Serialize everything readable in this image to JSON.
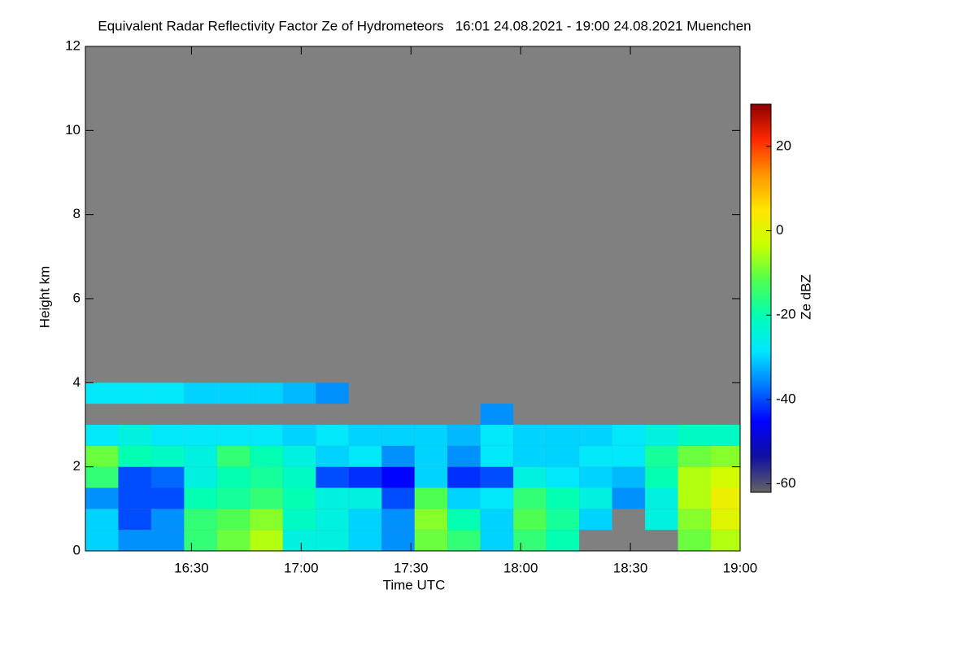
{
  "chart_data": {
    "type": "heatmap",
    "title": "Equivalent Radar Reflectivity Factor Ze of Hydrometeors   16:01 24.08.2021 - 19:00 24.08.2021 Muenchen",
    "xlabel": "Time UTC",
    "ylabel": "Height km",
    "colorbar_label": "Ze dBZ",
    "xlim": [
      "16:01",
      "19:00"
    ],
    "xticks": [
      "16:30",
      "17:00",
      "17:30",
      "18:00",
      "18:30",
      "19:00"
    ],
    "ylim": [
      0,
      12
    ],
    "yticks": [
      0,
      2,
      4,
      6,
      8,
      10,
      12
    ],
    "zlim": [
      -62,
      30
    ],
    "zticks": [
      -60,
      -40,
      -20,
      0,
      20
    ],
    "background": "#808080",
    "colormap": [
      "#646464",
      "#1010a0",
      "#0000ff",
      "#0078ff",
      "#00e6ff",
      "#00ffb4",
      "#50ff50",
      "#c8ff00",
      "#ffe600",
      "#ff9600",
      "#ff2800",
      "#8c0000"
    ],
    "xbins": [
      "16:01",
      "16:10",
      "16:19",
      "16:28",
      "16:37",
      "16:46",
      "16:55",
      "17:04",
      "17:13",
      "17:22",
      "17:31",
      "17:40",
      "17:49",
      "17:58",
      "18:07",
      "18:16",
      "18:25",
      "18:34",
      "18:43",
      "18:52",
      "19:00"
    ],
    "ybins": [
      0,
      0.5,
      1,
      1.5,
      2,
      2.5,
      3,
      3.5,
      4
    ],
    "values": [
      [
        -30,
        -35,
        -35,
        -15,
        -10,
        -5,
        -25,
        -25,
        -30,
        -35,
        -10,
        -15,
        -30,
        -15,
        -20,
        null,
        null,
        null,
        -10,
        -5
      ],
      [
        -30,
        -40,
        -35,
        -15,
        -12,
        -8,
        -22,
        -25,
        -30,
        -35,
        -8,
        -20,
        -30,
        -12,
        -18,
        -30,
        null,
        -25,
        -8,
        0
      ],
      [
        -35,
        -40,
        -40,
        -20,
        -18,
        -15,
        -20,
        -25,
        -25,
        -40,
        -12,
        -30,
        -28,
        -15,
        -20,
        -25,
        -35,
        -25,
        -5,
        2
      ],
      [
        -15,
        -40,
        -38,
        -25,
        -20,
        -18,
        -22,
        -40,
        -42,
        -45,
        -30,
        -42,
        -40,
        -25,
        -28,
        -30,
        -32,
        -20,
        -5,
        -2
      ],
      [
        -10,
        -20,
        -22,
        -25,
        -15,
        -20,
        -25,
        -30,
        -28,
        -35,
        -30,
        -35,
        -28,
        -30,
        -30,
        -28,
        -28,
        -18,
        -10,
        -8
      ],
      [
        -28,
        -25,
        -28,
        -28,
        -28,
        -28,
        -30,
        -28,
        -30,
        -30,
        -30,
        -32,
        -28,
        -30,
        -30,
        -30,
        -28,
        -25,
        -22,
        -22
      ],
      [
        null,
        null,
        null,
        null,
        null,
        null,
        null,
        null,
        null,
        null,
        null,
        null,
        -35,
        null,
        null,
        null,
        null,
        null,
        null,
        null
      ],
      [
        -28,
        -28,
        -28,
        -30,
        -30,
        -30,
        -32,
        -35,
        null,
        null,
        null,
        null,
        null,
        null,
        null,
        null,
        null,
        null,
        null,
        null
      ]
    ]
  }
}
